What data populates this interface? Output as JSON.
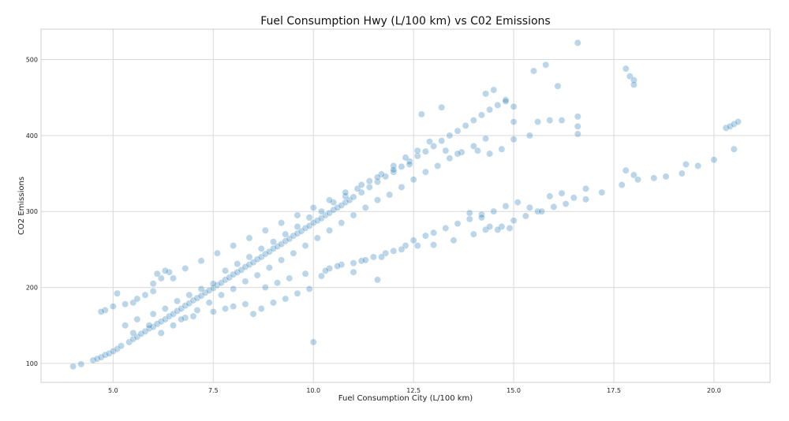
{
  "chart_data": {
    "type": "scatter",
    "title": "Fuel Consumption Hwy (L/100 km) vs C02 Emissions",
    "xlabel": "Fuel Consumption City (L/100 km)",
    "ylabel": "CO2 Emissions",
    "xlim": [
      3.2,
      21.4
    ],
    "ylim": [
      75,
      540
    ],
    "x_ticks": [
      5.0,
      7.5,
      10.0,
      12.5,
      15.0,
      17.5,
      20.0
    ],
    "x_tick_labels": [
      "5.0",
      "7.5",
      "10.0",
      "12.5",
      "15.0",
      "17.5",
      "20.0"
    ],
    "y_ticks": [
      100,
      200,
      300,
      400,
      500
    ],
    "y_tick_labels": [
      "100",
      "200",
      "300",
      "400",
      "500"
    ],
    "grid": true,
    "point_color": "#1f77b4",
    "point_opacity": 0.3,
    "series": [
      {
        "points": [
          [
            4.0,
            96
          ],
          [
            4.2,
            99
          ],
          [
            4.5,
            104
          ],
          [
            4.6,
            106
          ],
          [
            4.7,
            108
          ],
          [
            4.8,
            111
          ],
          [
            4.9,
            113
          ],
          [
            5.0,
            116
          ],
          [
            5.1,
            119
          ],
          [
            5.2,
            123
          ],
          [
            5.4,
            128
          ],
          [
            5.5,
            132
          ],
          [
            5.6,
            135
          ],
          [
            5.7,
            139
          ],
          [
            5.8,
            142
          ],
          [
            5.9,
            146
          ],
          [
            6.0,
            148
          ],
          [
            6.1,
            152
          ],
          [
            6.2,
            155
          ],
          [
            6.3,
            158
          ],
          [
            6.4,
            162
          ],
          [
            6.5,
            165
          ],
          [
            6.6,
            169
          ],
          [
            6.7,
            172
          ],
          [
            6.8,
            176
          ],
          [
            6.9,
            179
          ],
          [
            7.0,
            183
          ],
          [
            7.1,
            186
          ],
          [
            7.2,
            189
          ],
          [
            7.3,
            193
          ],
          [
            7.4,
            196
          ],
          [
            7.5,
            199
          ],
          [
            7.6,
            203
          ],
          [
            7.7,
            206
          ],
          [
            7.8,
            210
          ],
          [
            7.9,
            213
          ],
          [
            8.0,
            217
          ],
          [
            8.1,
            220
          ],
          [
            8.2,
            223
          ],
          [
            8.3,
            227
          ],
          [
            8.4,
            230
          ],
          [
            8.5,
            233
          ],
          [
            8.6,
            237
          ],
          [
            8.7,
            240
          ],
          [
            8.8,
            244
          ],
          [
            8.9,
            247
          ],
          [
            9.0,
            251
          ],
          [
            9.1,
            254
          ],
          [
            9.2,
            257
          ],
          [
            9.3,
            261
          ],
          [
            9.4,
            264
          ],
          [
            9.5,
            268
          ],
          [
            9.6,
            271
          ],
          [
            9.7,
            274
          ],
          [
            9.8,
            278
          ],
          [
            9.9,
            281
          ],
          [
            10.0,
            285
          ],
          [
            10.1,
            288
          ],
          [
            10.2,
            291
          ],
          [
            10.3,
            295
          ],
          [
            10.4,
            298
          ],
          [
            10.5,
            302
          ],
          [
            10.6,
            305
          ],
          [
            10.7,
            308
          ],
          [
            10.8,
            312
          ],
          [
            10.9,
            315
          ],
          [
            11.0,
            319
          ],
          [
            11.2,
            325
          ],
          [
            11.4,
            332
          ],
          [
            11.6,
            339
          ],
          [
            11.8,
            346
          ],
          [
            12.0,
            352
          ],
          [
            12.2,
            359
          ],
          [
            12.4,
            366
          ],
          [
            12.6,
            373
          ],
          [
            12.8,
            379
          ],
          [
            13.0,
            386
          ],
          [
            13.2,
            393
          ],
          [
            13.4,
            400
          ],
          [
            13.6,
            406
          ],
          [
            13.8,
            413
          ],
          [
            14.0,
            420
          ],
          [
            14.2,
            427
          ],
          [
            14.4,
            434
          ],
          [
            14.6,
            440
          ],
          [
            14.8,
            447
          ],
          [
            5.3,
            150
          ],
          [
            5.6,
            158
          ],
          [
            6.0,
            165
          ],
          [
            6.3,
            172
          ],
          [
            6.6,
            182
          ],
          [
            6.9,
            190
          ],
          [
            7.2,
            198
          ],
          [
            7.5,
            205
          ],
          [
            7.8,
            222
          ],
          [
            8.1,
            231
          ],
          [
            8.4,
            240
          ],
          [
            8.7,
            251
          ],
          [
            9.0,
            260
          ],
          [
            9.3,
            270
          ],
          [
            9.6,
            280
          ],
          [
            9.9,
            292
          ],
          [
            10.2,
            300
          ],
          [
            10.5,
            312
          ],
          [
            10.8,
            320
          ],
          [
            11.1,
            330
          ],
          [
            11.4,
            340
          ],
          [
            11.7,
            349
          ],
          [
            12.0,
            360
          ],
          [
            12.3,
            371
          ],
          [
            12.6,
            380
          ],
          [
            12.9,
            392
          ],
          [
            5.5,
            140
          ],
          [
            5.9,
            150
          ],
          [
            6.2,
            140
          ],
          [
            6.5,
            150
          ],
          [
            6.8,
            160
          ],
          [
            7.1,
            170
          ],
          [
            7.4,
            180
          ],
          [
            7.7,
            190
          ],
          [
            8.0,
            198
          ],
          [
            8.3,
            208
          ],
          [
            8.6,
            216
          ],
          [
            8.9,
            226
          ],
          [
            9.2,
            236
          ],
          [
            9.5,
            245
          ],
          [
            9.8,
            255
          ],
          [
            10.1,
            265
          ],
          [
            10.4,
            275
          ],
          [
            10.7,
            285
          ],
          [
            11.0,
            295
          ],
          [
            11.3,
            305
          ],
          [
            11.6,
            315
          ],
          [
            11.9,
            322
          ],
          [
            12.2,
            332
          ],
          [
            12.5,
            342
          ],
          [
            12.8,
            352
          ],
          [
            13.1,
            360
          ],
          [
            13.4,
            370
          ],
          [
            13.7,
            378
          ],
          [
            14.0,
            386
          ],
          [
            14.3,
            396
          ],
          [
            13.3,
            380
          ],
          [
            13.6,
            376
          ],
          [
            14.1,
            380
          ],
          [
            14.4,
            376
          ],
          [
            14.7,
            382
          ],
          [
            15.0,
            395
          ],
          [
            6.0,
            205
          ],
          [
            6.2,
            212
          ],
          [
            6.4,
            220
          ],
          [
            6.8,
            225
          ],
          [
            7.2,
            235
          ],
          [
            7.6,
            245
          ],
          [
            8.0,
            255
          ],
          [
            8.4,
            265
          ],
          [
            8.8,
            275
          ],
          [
            9.2,
            285
          ],
          [
            9.6,
            295
          ],
          [
            10.0,
            305
          ],
          [
            10.4,
            315
          ],
          [
            10.8,
            325
          ],
          [
            11.2,
            335
          ],
          [
            11.6,
            345
          ],
          [
            12.0,
            355
          ],
          [
            12.4,
            362
          ],
          [
            12.7,
            428
          ],
          [
            13.2,
            437
          ],
          [
            14.3,
            455
          ],
          [
            14.5,
            460
          ],
          [
            14.8,
            445
          ],
          [
            15.0,
            438
          ],
          [
            15.5,
            485
          ],
          [
            15.8,
            493
          ],
          [
            16.1,
            465
          ],
          [
            16.6,
            522
          ],
          [
            17.8,
            488
          ],
          [
            17.9,
            478
          ],
          [
            18.0,
            473
          ],
          [
            18.0,
            467
          ],
          [
            15.0,
            418
          ],
          [
            15.6,
            418
          ],
          [
            15.9,
            420
          ],
          [
            16.2,
            420
          ],
          [
            16.6,
            425
          ],
          [
            16.6,
            412
          ],
          [
            16.6,
            402
          ],
          [
            15.4,
            400
          ],
          [
            20.3,
            410
          ],
          [
            20.4,
            412
          ],
          [
            20.5,
            415
          ],
          [
            20.6,
            418
          ],
          [
            20.5,
            382
          ],
          [
            5.1,
            192
          ],
          [
            5.0,
            175
          ],
          [
            4.8,
            170
          ],
          [
            4.7,
            168
          ],
          [
            5.3,
            178
          ],
          [
            5.5,
            180
          ],
          [
            5.6,
            185
          ],
          [
            5.8,
            190
          ],
          [
            6.0,
            195
          ],
          [
            6.1,
            218
          ],
          [
            6.3,
            222
          ],
          [
            6.5,
            212
          ],
          [
            6.7,
            158
          ],
          [
            7.0,
            162
          ],
          [
            7.5,
            168
          ],
          [
            7.8,
            172
          ],
          [
            8.0,
            175
          ],
          [
            8.3,
            178
          ],
          [
            8.5,
            165
          ],
          [
            8.7,
            172
          ],
          [
            9.0,
            180
          ],
          [
            9.3,
            185
          ],
          [
            9.6,
            192
          ],
          [
            9.9,
            198
          ],
          [
            10.0,
            128
          ],
          [
            10.2,
            215
          ],
          [
            10.4,
            225
          ],
          [
            10.7,
            230
          ],
          [
            11.0,
            220
          ],
          [
            11.2,
            235
          ],
          [
            11.5,
            240
          ],
          [
            11.8,
            245
          ],
          [
            11.6,
            210
          ],
          [
            12.0,
            248
          ],
          [
            12.3,
            255
          ],
          [
            12.5,
            262
          ],
          [
            12.8,
            268
          ],
          [
            13.0,
            272
          ],
          [
            13.3,
            278
          ],
          [
            13.6,
            284
          ],
          [
            13.9,
            290
          ],
          [
            14.2,
            296
          ],
          [
            14.5,
            300
          ],
          [
            14.8,
            307
          ],
          [
            15.1,
            312
          ],
          [
            15.4,
            305
          ],
          [
            15.6,
            300
          ],
          [
            15.9,
            320
          ],
          [
            16.2,
            324
          ],
          [
            16.5,
            318
          ],
          [
            16.8,
            330
          ],
          [
            17.2,
            325
          ],
          [
            17.7,
            335
          ],
          [
            17.8,
            354
          ],
          [
            18.0,
            348
          ],
          [
            18.1,
            342
          ],
          [
            18.5,
            344
          ],
          [
            18.8,
            346
          ],
          [
            19.2,
            350
          ],
          [
            19.3,
            362
          ],
          [
            19.6,
            360
          ],
          [
            20.0,
            368
          ],
          [
            12.2,
            250
          ],
          [
            12.6,
            255
          ],
          [
            13.0,
            256
          ],
          [
            13.5,
            262
          ],
          [
            14.0,
            270
          ],
          [
            14.3,
            276
          ],
          [
            14.7,
            280
          ],
          [
            15.0,
            288
          ],
          [
            15.3,
            294
          ],
          [
            15.7,
            300
          ],
          [
            16.0,
            306
          ],
          [
            16.3,
            310
          ],
          [
            16.8,
            316
          ],
          [
            13.9,
            298
          ],
          [
            14.2,
            292
          ],
          [
            14.4,
            280
          ],
          [
            14.6,
            276
          ],
          [
            14.9,
            278
          ],
          [
            8.8,
            200
          ],
          [
            9.1,
            206
          ],
          [
            9.4,
            212
          ],
          [
            9.8,
            218
          ],
          [
            10.3,
            222
          ],
          [
            10.6,
            228
          ],
          [
            11.0,
            232
          ],
          [
            11.3,
            236
          ],
          [
            11.7,
            240
          ]
        ]
      }
    ]
  }
}
